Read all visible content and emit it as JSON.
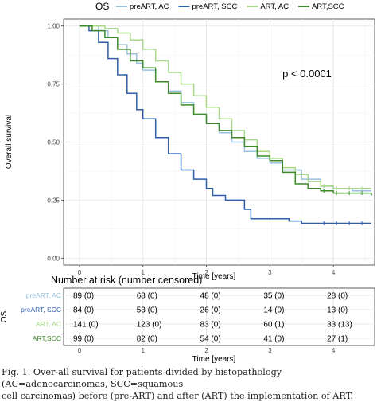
{
  "chart_data": {
    "type": "line",
    "subtype": "kaplan-meier",
    "legend_title": "OS",
    "legend_position": "top",
    "xlabel": "Time [years]",
    "ylabel": "Overall survival",
    "xlim": [
      -0.25,
      4.65
    ],
    "ylim": [
      -0.03,
      1.03
    ],
    "x_ticks": [
      0,
      1,
      2,
      3,
      4
    ],
    "y_ticks": [
      0,
      0.25,
      0.5,
      0.75,
      1
    ],
    "x_tick_labels": [
      "0",
      "1",
      "2",
      "3",
      "4"
    ],
    "y_tick_labels": [
      "0.00",
      "0.25",
      "0.50",
      "0.75",
      "1.00"
    ],
    "grid": true,
    "annotation": "p < 0.0001",
    "series": [
      {
        "name": "preART, AC",
        "color": "#9ac1dd",
        "points": [
          [
            0,
            1
          ],
          [
            0.15,
            1
          ],
          [
            0.3,
            0.98
          ],
          [
            0.45,
            0.95
          ],
          [
            0.6,
            0.92
          ],
          [
            0.75,
            0.88
          ],
          [
            0.9,
            0.84
          ],
          [
            1.0,
            0.81
          ],
          [
            1.2,
            0.76
          ],
          [
            1.4,
            0.72
          ],
          [
            1.6,
            0.67
          ],
          [
            1.8,
            0.62
          ],
          [
            2.0,
            0.58
          ],
          [
            2.2,
            0.54
          ],
          [
            2.4,
            0.5
          ],
          [
            2.6,
            0.46
          ],
          [
            2.8,
            0.43
          ],
          [
            3.0,
            0.41
          ],
          [
            3.2,
            0.38
          ],
          [
            3.5,
            0.34
          ],
          [
            3.8,
            0.31
          ],
          [
            4.0,
            0.3
          ],
          [
            4.3,
            0.29
          ],
          [
            4.6,
            0.29
          ]
        ]
      },
      {
        "name": "preART, SCC",
        "color": "#2e5ea8",
        "points": [
          [
            0,
            1
          ],
          [
            0.15,
            0.98
          ],
          [
            0.3,
            0.93
          ],
          [
            0.45,
            0.86
          ],
          [
            0.6,
            0.79
          ],
          [
            0.75,
            0.71
          ],
          [
            0.9,
            0.64
          ],
          [
            1.0,
            0.6
          ],
          [
            1.2,
            0.52
          ],
          [
            1.4,
            0.45
          ],
          [
            1.6,
            0.38
          ],
          [
            1.8,
            0.34
          ],
          [
            2.0,
            0.3
          ],
          [
            2.1,
            0.27
          ],
          [
            2.3,
            0.25
          ],
          [
            2.6,
            0.21
          ],
          [
            2.7,
            0.17
          ],
          [
            3.0,
            0.17
          ],
          [
            3.3,
            0.16
          ],
          [
            3.5,
            0.15
          ],
          [
            4.0,
            0.15
          ],
          [
            4.6,
            0.15
          ]
        ]
      },
      {
        "name": "ART, AC",
        "color": "#a8d888",
        "points": [
          [
            0,
            1
          ],
          [
            0.2,
            1
          ],
          [
            0.4,
            0.99
          ],
          [
            0.6,
            0.97
          ],
          [
            0.8,
            0.94
          ],
          [
            1.0,
            0.9
          ],
          [
            1.2,
            0.85
          ],
          [
            1.4,
            0.8
          ],
          [
            1.6,
            0.75
          ],
          [
            1.8,
            0.7
          ],
          [
            2.0,
            0.65
          ],
          [
            2.2,
            0.6
          ],
          [
            2.4,
            0.55
          ],
          [
            2.6,
            0.51
          ],
          [
            2.8,
            0.46
          ],
          [
            3.0,
            0.43
          ],
          [
            3.2,
            0.39
          ],
          [
            3.4,
            0.36
          ],
          [
            3.6,
            0.33
          ],
          [
            3.8,
            0.31
          ],
          [
            4.0,
            0.3
          ],
          [
            4.3,
            0.3
          ],
          [
            4.6,
            0.3
          ]
        ]
      },
      {
        "name": "ART,SCC",
        "color": "#3f8a2a",
        "points": [
          [
            0,
            1
          ],
          [
            0.2,
            0.98
          ],
          [
            0.4,
            0.95
          ],
          [
            0.6,
            0.9
          ],
          [
            0.8,
            0.85
          ],
          [
            1.0,
            0.82
          ],
          [
            1.2,
            0.76
          ],
          [
            1.4,
            0.71
          ],
          [
            1.6,
            0.66
          ],
          [
            1.8,
            0.62
          ],
          [
            2.0,
            0.58
          ],
          [
            2.2,
            0.55
          ],
          [
            2.4,
            0.52
          ],
          [
            2.6,
            0.48
          ],
          [
            2.8,
            0.44
          ],
          [
            3.0,
            0.42
          ],
          [
            3.2,
            0.37
          ],
          [
            3.4,
            0.32
          ],
          [
            3.6,
            0.3
          ],
          [
            3.8,
            0.29
          ],
          [
            4.0,
            0.28
          ],
          [
            4.3,
            0.28
          ],
          [
            4.6,
            0.27
          ]
        ]
      }
    ],
    "risk_table": {
      "title": "Number at risk (number censored)",
      "ylabel": "OS",
      "xlabel": "Time [years]",
      "rows": [
        {
          "name": "preART, AC",
          "color": "#9ac1dd",
          "cells": [
            "89 (0)",
            "68 (0)",
            "48 (0)",
            "35 (0)",
            "28 (0)"
          ]
        },
        {
          "name": "preART, SCC",
          "color": "#2e5ea8",
          "cells": [
            "84 (0)",
            "53 (0)",
            "26 (0)",
            "14 (0)",
            "13 (0)"
          ]
        },
        {
          "name": "ART, AC",
          "color": "#a8d888",
          "cells": [
            "141 (0)",
            "123 (0)",
            "83 (0)",
            "60 (1)",
            "33 (13)"
          ]
        },
        {
          "name": "ART,SCC",
          "color": "#3f8a2a",
          "cells": [
            "99 (0)",
            "82 (0)",
            "54 (0)",
            "41 (0)",
            "27 (1)"
          ]
        }
      ]
    }
  },
  "caption": {
    "line1": "Fig. 1. Over-all survival for patients divided by histopathology (AC=adenocarcinomas, SCC=squamous",
    "line2": "cell carcinomas) before (pre-ART) and after (ART) the implementation of ART."
  }
}
